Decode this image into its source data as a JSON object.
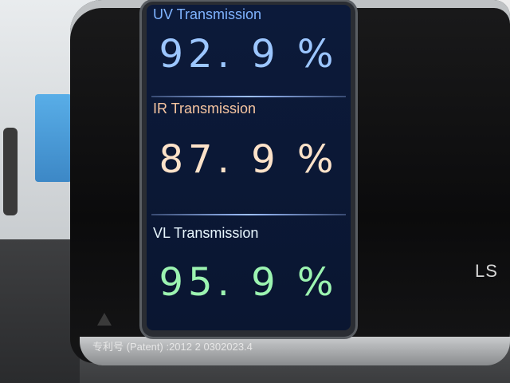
{
  "display": {
    "uv": {
      "label": "UV Transmission",
      "value": "92. 9 %",
      "color": "#86b8ff"
    },
    "ir": {
      "label": "IR Transmission",
      "value": "87. 9 %",
      "color": "#f6c7a6"
    },
    "vl": {
      "label": "VL Transmission",
      "value": "95. 9 %",
      "color": "#7ef09b"
    }
  },
  "device": {
    "patent_text": "专利号 (Patent) :2012 2 0302023.4",
    "brand_text": "LS"
  },
  "icons": [
    "warning-icon"
  ]
}
